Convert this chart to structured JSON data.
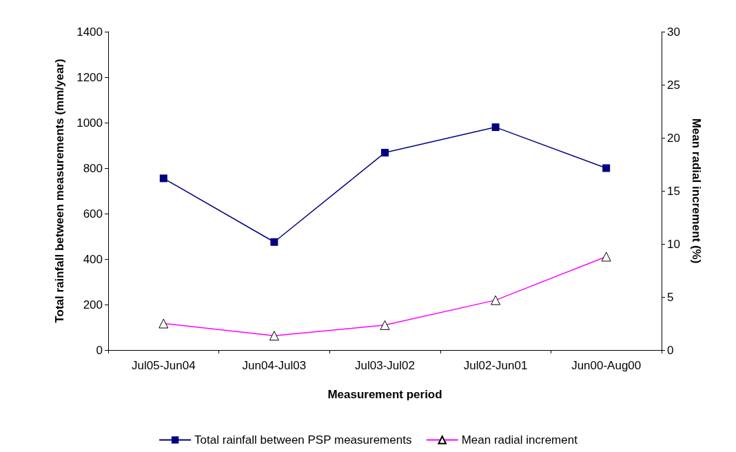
{
  "chart_data": {
    "type": "line",
    "xlabel": "Measurement period",
    "ylabel": "Total rainfall between measurements (mm/year)",
    "y2label": "Mean radial increment (%)",
    "categories": [
      "Jul05-Jun04",
      "Jun04-Jul03",
      "Jul03-Jul02",
      "Jul02-Jun01",
      "Jun00-Aug00"
    ],
    "series": [
      {
        "name": "Total rainfall between PSP measurements",
        "color": "#000080",
        "marker": "square",
        "values": [
          755,
          475,
          868,
          980,
          800
        ]
      },
      {
        "name": "Mean radial increment",
        "color": "#ff00ff",
        "marker": "triangle",
        "axis": "y2",
        "values": [
          2.5,
          1.35,
          2.35,
          4.7,
          8.8
        ]
      }
    ],
    "ylim": [
      0,
      1400
    ],
    "yticks": [
      0,
      200,
      400,
      600,
      800,
      1000,
      1200,
      1400
    ],
    "y2lim": [
      0,
      30
    ],
    "y2ticks": [
      0,
      5,
      10,
      15,
      20,
      25,
      30
    ],
    "grid": false,
    "legend": "bottom"
  }
}
